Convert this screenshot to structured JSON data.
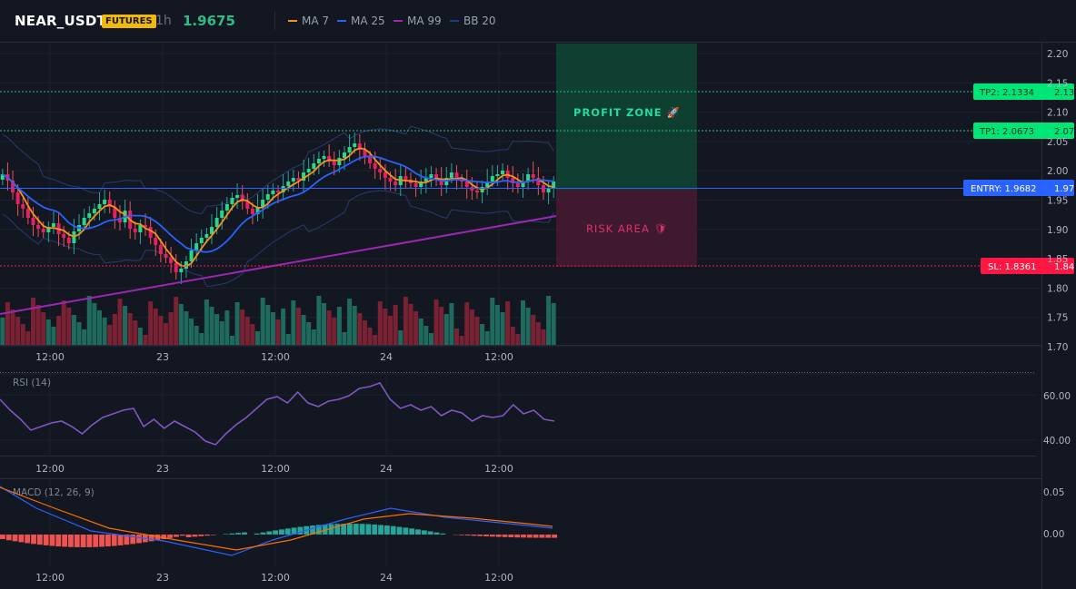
{
  "header": {
    "symbol": "NEAR_USDT",
    "badge": "FUTURES",
    "timeframe": "1h",
    "last_price": "1.9675",
    "legend": [
      {
        "label": "MA 7",
        "color": "#f7931a"
      },
      {
        "label": "MA 25",
        "color": "#2962ff"
      },
      {
        "label": "MA 99",
        "color": "#9c27b0"
      },
      {
        "label": "BB 20",
        "color": "#1e3a8a"
      }
    ]
  },
  "price_axis": {
    "ticks": [
      "2.20",
      "2.15",
      "2.10",
      "2.05",
      "2.00",
      "1.95",
      "1.90",
      "1.85",
      "1.80",
      "1.75",
      "1.70"
    ]
  },
  "time_axis": {
    "labels": [
      "12:00",
      "23",
      "12:00",
      "24",
      "12:00"
    ]
  },
  "zones": {
    "profit_label": "PROFIT ZONE 🚀",
    "risk_label": "RISK AREA 🛡"
  },
  "levels": {
    "tp2": {
      "label": "TP2: 2.1334",
      "axis": "2.13",
      "color": "#00e676"
    },
    "tp1": {
      "label": "TP1: 2.0673",
      "axis": "2.07",
      "color": "#00e676"
    },
    "entry": {
      "label": "ENTRY: 1.9682",
      "axis": "1.97",
      "color": "#2962ff"
    },
    "sl": {
      "label": "SL: 1.8361",
      "axis": "1.84",
      "color": "#ff1744"
    }
  },
  "rsi": {
    "title": "RSI (14)",
    "ticks": [
      "60.00",
      "40.00"
    ]
  },
  "macd": {
    "title": "MACD (12, 26, 9)",
    "ticks": [
      "0.05",
      "0.00"
    ]
  },
  "colors": {
    "up": "#26a69a",
    "down": "#ef5350",
    "bg": "#131722",
    "grid": "#1e222d"
  }
}
